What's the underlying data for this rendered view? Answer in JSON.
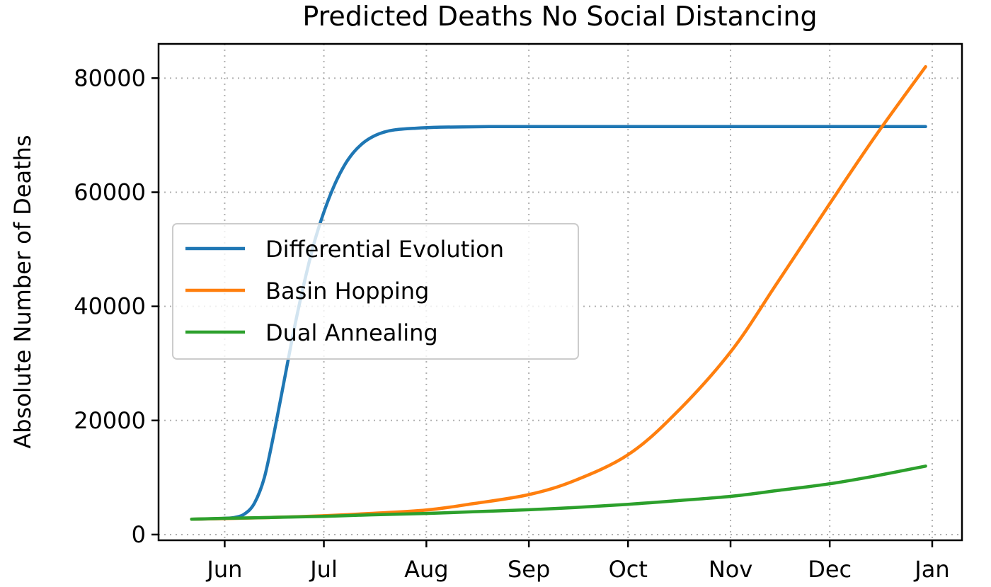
{
  "chart_data": {
    "type": "line",
    "title": "Predicted Deaths No Social Distancing",
    "xlabel": "",
    "ylabel": "Absolute Number of Deaths",
    "x_ticks": [
      {
        "date": "2020-06-01",
        "label": "Jun"
      },
      {
        "date": "2020-07-01",
        "label": "Jul"
      },
      {
        "date": "2020-08-01",
        "label": "Aug"
      },
      {
        "date": "2020-09-01",
        "label": "Sep"
      },
      {
        "date": "2020-10-01",
        "label": "Oct"
      },
      {
        "date": "2020-11-01",
        "label": "Nov"
      },
      {
        "date": "2020-12-01",
        "label": "Dec"
      },
      {
        "date": "2021-01-01",
        "label": "Jan"
      }
    ],
    "y_ticks": [
      0,
      20000,
      40000,
      60000,
      80000
    ],
    "xlim": [
      "2020-05-12",
      "2021-01-10"
    ],
    "ylim": [
      -1000,
      86000
    ],
    "grid": true,
    "legend_position": "center-left",
    "series": [
      {
        "name": "Differential Evolution",
        "color": "#1f77b4",
        "points": [
          [
            "2020-05-22",
            2700
          ],
          [
            "2020-05-27",
            2750
          ],
          [
            "2020-06-01",
            2850
          ],
          [
            "2020-06-04",
            3000
          ],
          [
            "2020-06-07",
            3600
          ],
          [
            "2020-06-10",
            5500
          ],
          [
            "2020-06-13",
            10000
          ],
          [
            "2020-06-16",
            18000
          ],
          [
            "2020-06-19",
            27000
          ],
          [
            "2020-06-22",
            36000
          ],
          [
            "2020-06-25",
            44000
          ],
          [
            "2020-06-28",
            51000
          ],
          [
            "2020-07-01",
            56500
          ],
          [
            "2020-07-04",
            61000
          ],
          [
            "2020-07-07",
            64500
          ],
          [
            "2020-07-10",
            67000
          ],
          [
            "2020-07-13",
            68700
          ],
          [
            "2020-07-16",
            69800
          ],
          [
            "2020-07-19",
            70500
          ],
          [
            "2020-07-22",
            70900
          ],
          [
            "2020-07-28",
            71200
          ],
          [
            "2020-08-05",
            71400
          ],
          [
            "2020-08-20",
            71500
          ],
          [
            "2020-09-15",
            71500
          ],
          [
            "2020-10-15",
            71500
          ],
          [
            "2020-11-15",
            71500
          ],
          [
            "2020-12-15",
            71500
          ],
          [
            "2020-12-30",
            71500
          ]
        ]
      },
      {
        "name": "Basin Hopping",
        "color": "#ff7f0e",
        "points": [
          [
            "2020-05-22",
            2700
          ],
          [
            "2020-06-01",
            2800
          ],
          [
            "2020-06-15",
            3000
          ],
          [
            "2020-07-01",
            3300
          ],
          [
            "2020-07-15",
            3700
          ],
          [
            "2020-08-01",
            4300
          ],
          [
            "2020-08-15",
            5400
          ],
          [
            "2020-09-01",
            7000
          ],
          [
            "2020-09-15",
            9500
          ],
          [
            "2020-10-01",
            14000
          ],
          [
            "2020-10-15",
            21000
          ],
          [
            "2020-11-01",
            32000
          ],
          [
            "2020-11-15",
            44000
          ],
          [
            "2020-12-01",
            58000
          ],
          [
            "2020-12-15",
            70000
          ],
          [
            "2020-12-30",
            82000
          ]
        ]
      },
      {
        "name": "Dual Annealing",
        "color": "#2ca02c",
        "points": [
          [
            "2020-05-22",
            2700
          ],
          [
            "2020-06-01",
            2850
          ],
          [
            "2020-06-15",
            3000
          ],
          [
            "2020-07-01",
            3200
          ],
          [
            "2020-07-15",
            3450
          ],
          [
            "2020-08-01",
            3700
          ],
          [
            "2020-08-15",
            4000
          ],
          [
            "2020-09-01",
            4350
          ],
          [
            "2020-09-15",
            4750
          ],
          [
            "2020-10-01",
            5300
          ],
          [
            "2020-10-15",
            5900
          ],
          [
            "2020-11-01",
            6700
          ],
          [
            "2020-11-15",
            7700
          ],
          [
            "2020-12-01",
            8900
          ],
          [
            "2020-12-15",
            10300
          ],
          [
            "2020-12-30",
            12000
          ]
        ]
      }
    ]
  }
}
